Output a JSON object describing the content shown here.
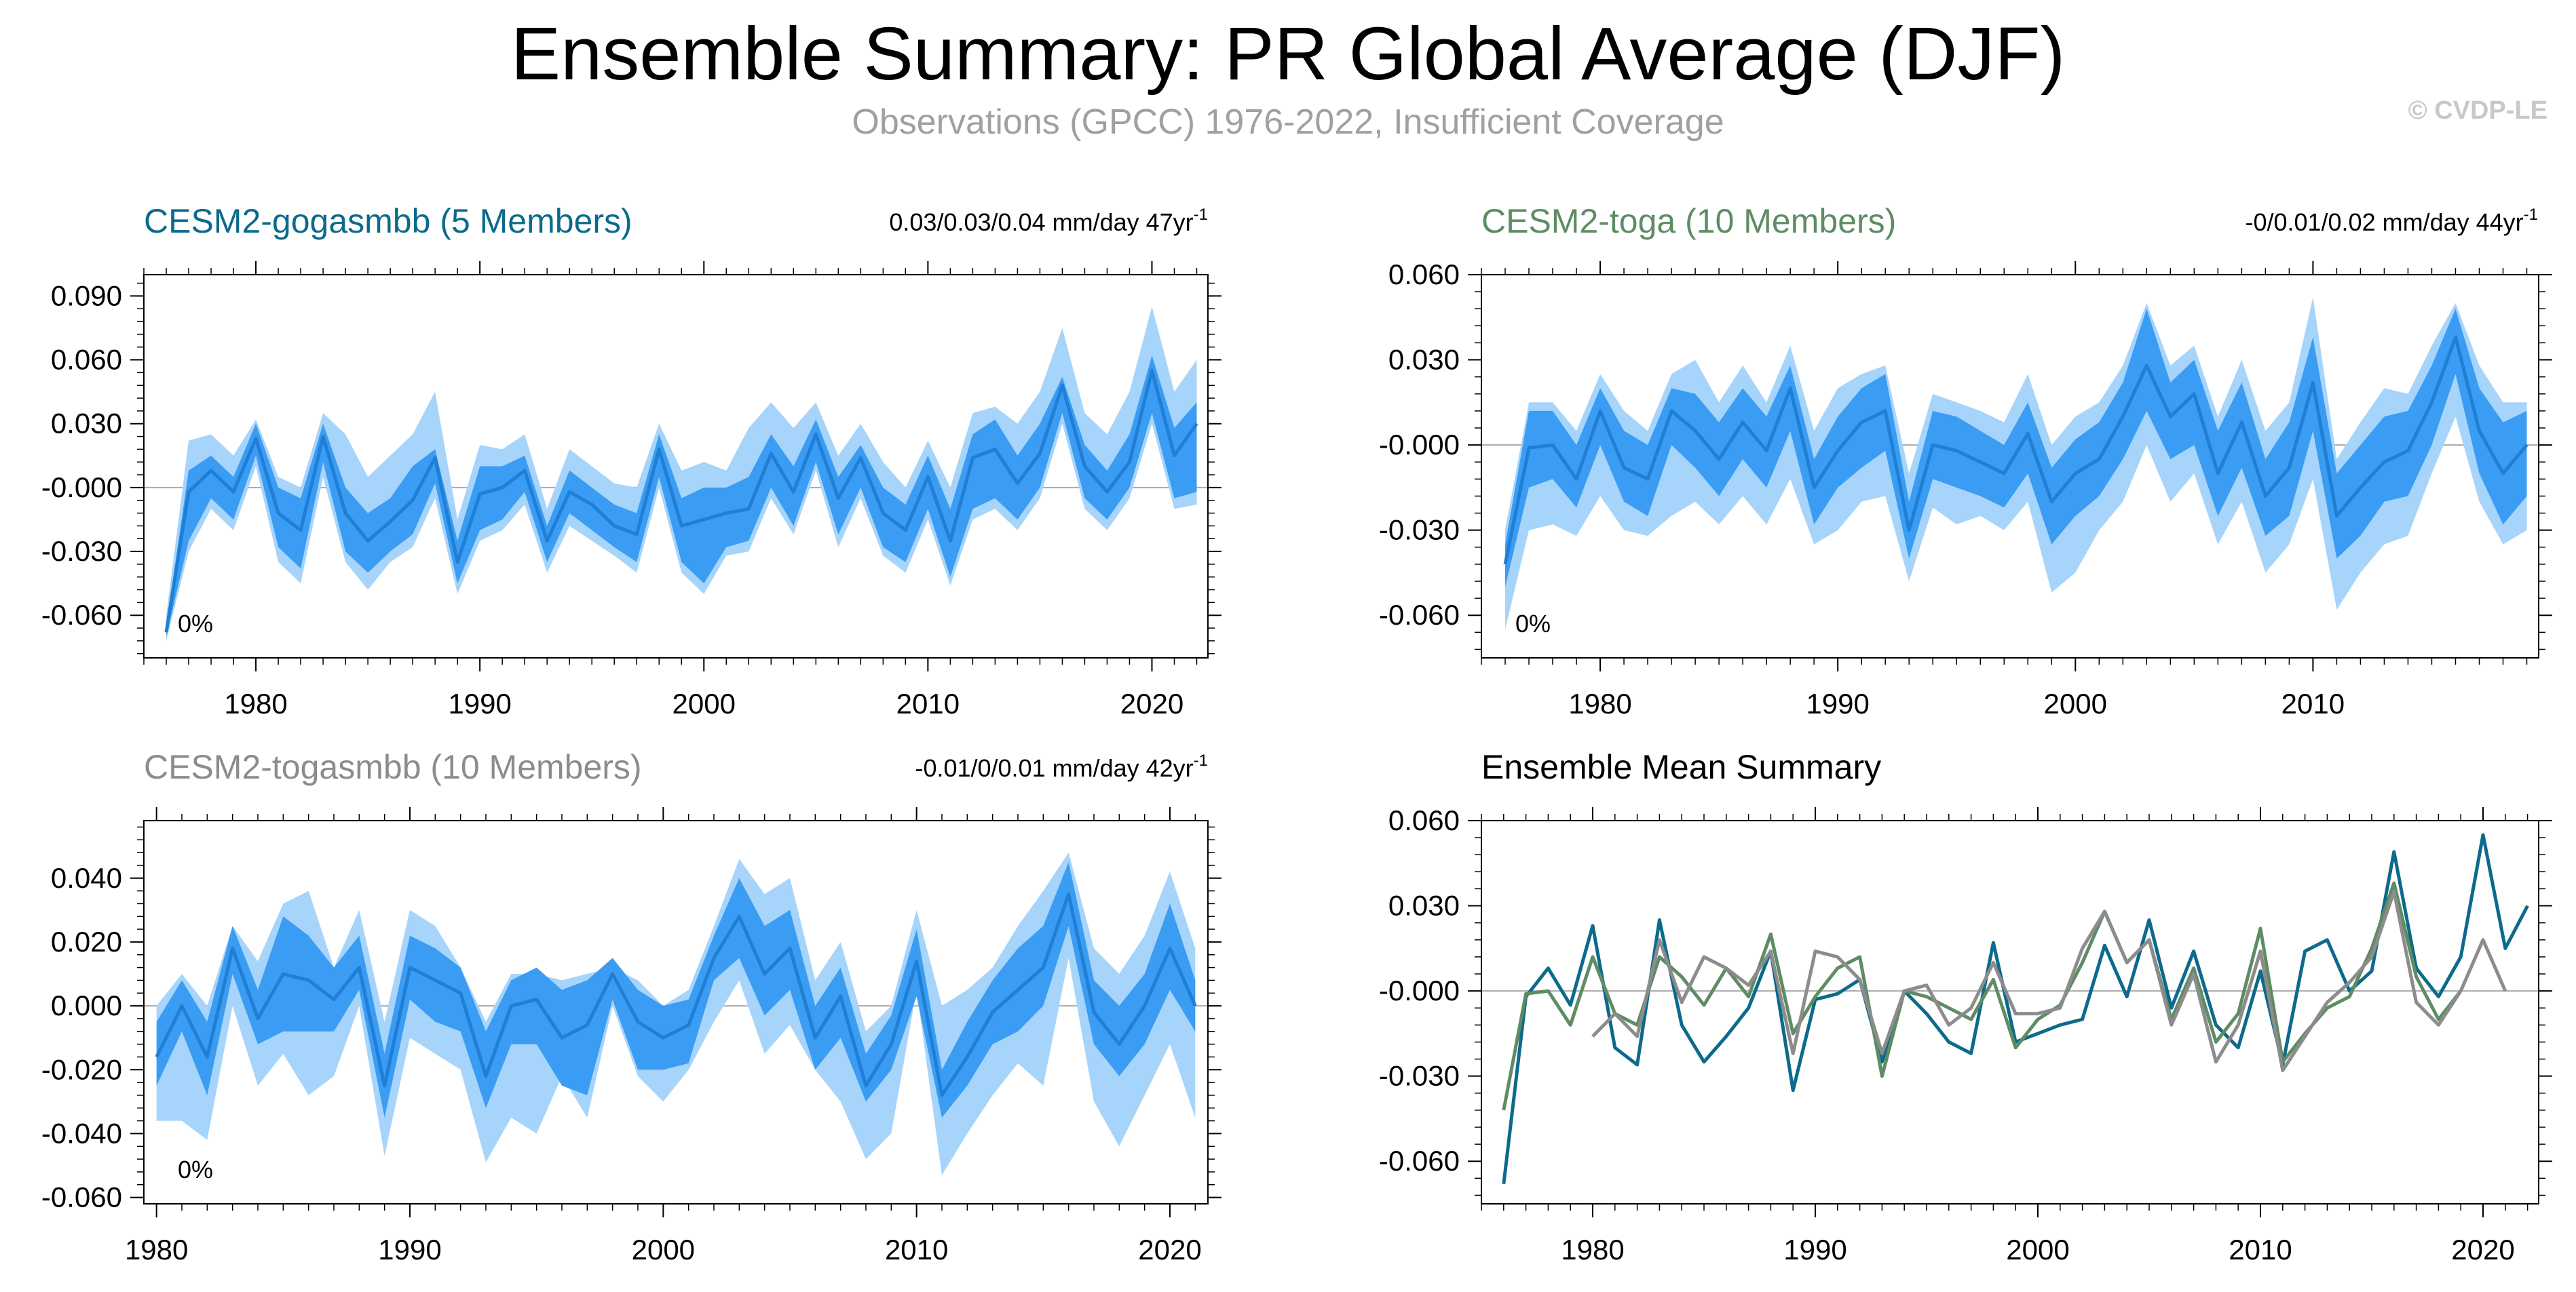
{
  "header": {
    "title": "Ensemble Summary: PR Global Average (DJF)",
    "subtitle": "Observations (GPCC) 1976-2022, Insufficient Coverage",
    "watermark": "© CVDP-LE"
  },
  "chart_data": [
    {
      "type": "area",
      "title": "CESM2-gogasmbb (5 Members)",
      "title_color": "#0c6a8c",
      "stats": "0.03/0.03/0.04 mm/day 47yr",
      "stats_sup": "-1",
      "pct_label": "0%",
      "xlim": [
        1975,
        2022.5
      ],
      "ylim": [
        -0.08,
        0.1
      ],
      "xticks": [
        1980,
        1990,
        2000,
        2010,
        2020
      ],
      "xtick_labels": [
        "1980",
        "1990",
        "2000",
        "2010",
        "2020"
      ],
      "yticks": [
        -0.06,
        -0.03,
        0.0,
        0.03,
        0.06,
        0.09
      ],
      "ytick_labels": [
        "-0.060",
        "-0.030",
        "-0.000",
        "0.030",
        "0.060",
        "0.090"
      ],
      "x_start": 1976,
      "mean": [
        -0.068,
        -0.002,
        0.008,
        -0.002,
        0.023,
        -0.012,
        -0.02,
        0.024,
        -0.012,
        -0.025,
        -0.016,
        -0.006,
        0.014,
        -0.035,
        -0.003,
        0.0,
        0.008,
        -0.025,
        -0.002,
        -0.008,
        -0.018,
        -0.022,
        0.018,
        -0.018,
        -0.015,
        -0.012,
        -0.01,
        0.016,
        -0.002,
        0.025,
        -0.005,
        0.014,
        -0.012,
        -0.02,
        0.005,
        -0.025,
        0.014,
        0.018,
        0.002,
        0.016,
        0.048,
        0.01,
        -0.002,
        0.012,
        0.055,
        0.015,
        0.03
      ],
      "inner_low": [
        -0.07,
        -0.025,
        -0.005,
        -0.015,
        0.015,
        -0.028,
        -0.038,
        0.012,
        -0.03,
        -0.04,
        -0.03,
        -0.022,
        0.002,
        -0.045,
        -0.02,
        -0.015,
        -0.002,
        -0.035,
        -0.012,
        -0.02,
        -0.028,
        -0.035,
        0.005,
        -0.035,
        -0.045,
        -0.028,
        -0.025,
        0.0,
        -0.018,
        0.012,
        -0.022,
        0.0,
        -0.028,
        -0.035,
        -0.01,
        -0.042,
        -0.01,
        -0.005,
        -0.015,
        0.0,
        0.035,
        -0.005,
        -0.015,
        0.0,
        0.035,
        -0.005,
        -0.002
      ],
      "inner_high": [
        -0.065,
        0.008,
        0.015,
        0.005,
        0.03,
        0.0,
        -0.005,
        0.03,
        0.0,
        -0.012,
        -0.005,
        0.01,
        0.018,
        -0.025,
        0.01,
        0.01,
        0.015,
        -0.018,
        0.008,
        0.0,
        -0.008,
        -0.012,
        0.025,
        -0.005,
        0.0,
        0.0,
        0.005,
        0.025,
        0.01,
        0.032,
        0.005,
        0.02,
        0.0,
        -0.008,
        0.015,
        -0.01,
        0.025,
        0.032,
        0.015,
        0.03,
        0.052,
        0.02,
        0.008,
        0.025,
        0.062,
        0.028,
        0.04
      ],
      "outer_low": [
        -0.072,
        -0.03,
        -0.01,
        -0.02,
        0.01,
        -0.035,
        -0.045,
        0.005,
        -0.035,
        -0.048,
        -0.035,
        -0.028,
        -0.005,
        -0.05,
        -0.025,
        -0.02,
        -0.008,
        -0.04,
        -0.018,
        -0.025,
        -0.032,
        -0.04,
        0.0,
        -0.04,
        -0.05,
        -0.032,
        -0.03,
        -0.005,
        -0.022,
        0.008,
        -0.028,
        -0.005,
        -0.032,
        -0.04,
        -0.015,
        -0.046,
        -0.015,
        -0.01,
        -0.02,
        -0.005,
        0.03,
        -0.01,
        -0.02,
        -0.005,
        0.03,
        -0.01,
        -0.008
      ],
      "outer_high": [
        -0.06,
        0.022,
        0.025,
        0.015,
        0.032,
        0.005,
        0.0,
        0.035,
        0.025,
        0.005,
        0.015,
        0.025,
        0.045,
        -0.015,
        0.02,
        0.018,
        0.025,
        -0.01,
        0.018,
        0.01,
        0.002,
        0.0,
        0.03,
        0.008,
        0.012,
        0.008,
        0.028,
        0.04,
        0.028,
        0.04,
        0.015,
        0.03,
        0.012,
        0.0,
        0.022,
        0.0,
        0.035,
        0.038,
        0.03,
        0.045,
        0.075,
        0.035,
        0.025,
        0.045,
        0.085,
        0.045,
        0.06
      ]
    },
    {
      "type": "area",
      "title": "CESM2-toga (10 Members)",
      "title_color": "#5e8c64",
      "stats": "-0/0.01/0.02 mm/day 44yr",
      "stats_sup": "-1",
      "pct_label": "0%",
      "xlim": [
        1975,
        2019.5
      ],
      "ylim": [
        -0.075,
        0.06
      ],
      "xticks": [
        1980,
        1990,
        2000,
        2010
      ],
      "xtick_labels": [
        "1980",
        "1990",
        "2000",
        "2010"
      ],
      "yticks": [
        -0.06,
        -0.03,
        0.0,
        0.03,
        0.06
      ],
      "ytick_labels": [
        "-0.060",
        "-0.030",
        "-0.000",
        "0.030",
        "0.060"
      ],
      "x_start": 1976,
      "mean": [
        -0.042,
        -0.001,
        0.0,
        -0.012,
        0.012,
        -0.008,
        -0.012,
        0.012,
        0.005,
        -0.005,
        0.008,
        -0.002,
        0.02,
        -0.015,
        -0.002,
        0.008,
        0.012,
        -0.03,
        0.0,
        -0.002,
        -0.006,
        -0.01,
        0.004,
        -0.02,
        -0.01,
        -0.005,
        0.01,
        0.028,
        0.01,
        0.018,
        -0.01,
        0.008,
        -0.018,
        -0.008,
        0.022,
        -0.025,
        -0.015,
        -0.006,
        -0.002,
        0.015,
        0.038,
        0.005,
        -0.01,
        0.0
      ],
      "inner_low": [
        -0.05,
        -0.015,
        -0.012,
        -0.022,
        0.0,
        -0.02,
        -0.025,
        0.0,
        -0.008,
        -0.018,
        -0.005,
        -0.015,
        0.005,
        -0.028,
        -0.015,
        -0.008,
        -0.002,
        -0.04,
        -0.012,
        -0.015,
        -0.018,
        -0.022,
        -0.01,
        -0.035,
        -0.025,
        -0.018,
        -0.005,
        0.012,
        -0.005,
        0.0,
        -0.025,
        -0.008,
        -0.032,
        -0.025,
        0.005,
        -0.04,
        -0.032,
        -0.02,
        -0.018,
        0.0,
        0.025,
        -0.01,
        -0.028,
        -0.018
      ],
      "inner_high": [
        -0.035,
        0.012,
        0.012,
        0.0,
        0.02,
        0.005,
        0.0,
        0.02,
        0.018,
        0.008,
        0.02,
        0.01,
        0.028,
        -0.005,
        0.01,
        0.02,
        0.025,
        -0.02,
        0.012,
        0.01,
        0.005,
        0.0,
        0.015,
        -0.008,
        0.002,
        0.008,
        0.022,
        0.048,
        0.022,
        0.03,
        0.005,
        0.022,
        -0.005,
        0.008,
        0.038,
        -0.01,
        0.0,
        0.01,
        0.012,
        0.028,
        0.048,
        0.02,
        0.008,
        0.012
      ],
      "outer_low": [
        -0.065,
        -0.03,
        -0.028,
        -0.032,
        -0.018,
        -0.03,
        -0.032,
        -0.025,
        -0.02,
        -0.028,
        -0.018,
        -0.028,
        -0.012,
        -0.035,
        -0.03,
        -0.02,
        -0.018,
        -0.048,
        -0.022,
        -0.028,
        -0.025,
        -0.03,
        -0.02,
        -0.052,
        -0.045,
        -0.03,
        -0.02,
        0.0,
        -0.02,
        -0.01,
        -0.035,
        -0.02,
        -0.045,
        -0.035,
        -0.012,
        -0.058,
        -0.045,
        -0.035,
        -0.032,
        -0.01,
        0.01,
        -0.02,
        -0.035,
        -0.03
      ],
      "outer_high": [
        -0.03,
        0.015,
        0.015,
        0.005,
        0.025,
        0.012,
        0.005,
        0.025,
        0.03,
        0.015,
        0.028,
        0.015,
        0.035,
        0.005,
        0.02,
        0.025,
        0.028,
        -0.01,
        0.018,
        0.015,
        0.012,
        0.008,
        0.025,
        0.0,
        0.01,
        0.015,
        0.028,
        0.05,
        0.028,
        0.035,
        0.01,
        0.03,
        0.005,
        0.015,
        0.052,
        -0.005,
        0.008,
        0.02,
        0.018,
        0.035,
        0.05,
        0.028,
        0.015,
        0.015
      ]
    },
    {
      "type": "area",
      "title": "CESM2-togasmbb (10 Members)",
      "title_color": "#8c8c8c",
      "stats": "-0.01/0/0.01 mm/day 42yr",
      "stats_sup": "-1",
      "pct_label": "0%",
      "xlim": [
        1979.5,
        2021.5
      ],
      "ylim": [
        -0.062,
        0.058
      ],
      "xticks": [
        1980,
        1990,
        2000,
        2010,
        2020
      ],
      "xtick_labels": [
        "1980",
        "1990",
        "2000",
        "2010",
        "2020"
      ],
      "yticks": [
        -0.06,
        -0.04,
        -0.02,
        0.0,
        0.02,
        0.04
      ],
      "ytick_labels": [
        "-0.060",
        "-0.040",
        "-0.020",
        "0.000",
        "0.020",
        "0.040"
      ],
      "x_start": 1980,
      "mean": [
        -0.016,
        0.0,
        -0.016,
        0.018,
        -0.004,
        0.01,
        0.008,
        0.002,
        0.012,
        -0.025,
        0.012,
        0.008,
        0.004,
        -0.022,
        0.0,
        0.002,
        -0.01,
        -0.006,
        0.01,
        -0.005,
        -0.01,
        -0.006,
        0.015,
        0.028,
        0.01,
        0.018,
        -0.01,
        0.003,
        -0.025,
        -0.012,
        0.014,
        -0.028,
        -0.016,
        -0.002,
        0.005,
        0.012,
        0.035,
        -0.002,
        -0.012,
        0.0,
        0.018,
        0.0
      ],
      "inner_low": [
        -0.025,
        -0.008,
        -0.028,
        0.01,
        -0.012,
        -0.008,
        -0.008,
        -0.008,
        0.005,
        -0.035,
        0.002,
        -0.005,
        -0.008,
        -0.032,
        -0.012,
        -0.012,
        -0.025,
        -0.028,
        0.002,
        -0.02,
        -0.02,
        -0.018,
        0.008,
        0.015,
        -0.003,
        0.005,
        -0.02,
        -0.01,
        -0.03,
        -0.02,
        0.003,
        -0.035,
        -0.025,
        -0.012,
        -0.008,
        0.0,
        0.025,
        -0.012,
        -0.022,
        -0.012,
        0.005,
        -0.008
      ],
      "inner_high": [
        -0.005,
        0.008,
        -0.005,
        0.025,
        0.005,
        0.028,
        0.022,
        0.012,
        0.022,
        -0.015,
        0.022,
        0.018,
        0.012,
        -0.008,
        0.008,
        0.012,
        0.005,
        0.008,
        0.015,
        0.005,
        0.0,
        0.002,
        0.022,
        0.04,
        0.025,
        0.03,
        0.0,
        0.012,
        -0.015,
        -0.003,
        0.024,
        -0.02,
        -0.005,
        0.008,
        0.018,
        0.025,
        0.045,
        0.008,
        0.0,
        0.01,
        0.032,
        0.008
      ],
      "outer_low": [
        -0.036,
        -0.036,
        -0.042,
        0.0,
        -0.025,
        -0.015,
        -0.028,
        -0.022,
        0.0,
        -0.047,
        -0.01,
        -0.015,
        -0.02,
        -0.049,
        -0.035,
        -0.04,
        -0.022,
        -0.035,
        0.0,
        -0.022,
        -0.03,
        -0.02,
        -0.005,
        0.008,
        -0.015,
        -0.006,
        -0.02,
        -0.03,
        -0.048,
        -0.04,
        0.005,
        -0.053,
        -0.04,
        -0.028,
        -0.018,
        -0.025,
        0.015,
        -0.03,
        -0.044,
        -0.028,
        -0.012,
        -0.035
      ],
      "outer_high": [
        0.0,
        0.01,
        0.0,
        0.025,
        0.014,
        0.032,
        0.036,
        0.012,
        0.03,
        -0.005,
        0.03,
        0.025,
        0.012,
        -0.005,
        0.01,
        0.01,
        0.008,
        0.01,
        0.012,
        0.008,
        0.0,
        0.005,
        0.025,
        0.046,
        0.035,
        0.04,
        0.008,
        0.02,
        -0.008,
        0.0,
        0.03,
        0.0,
        0.005,
        0.012,
        0.025,
        0.036,
        0.048,
        0.018,
        0.01,
        0.022,
        0.042,
        0.018
      ]
    },
    {
      "type": "line",
      "title": "Ensemble Mean Summary",
      "title_color": "#000000",
      "xlim": [
        1975,
        2022.5
      ],
      "ylim": [
        -0.075,
        0.06
      ],
      "xticks": [
        1980,
        1990,
        2000,
        2010,
        2020
      ],
      "xtick_labels": [
        "1980",
        "1990",
        "2000",
        "2010",
        "2020"
      ],
      "yticks": [
        -0.06,
        -0.03,
        0.0,
        0.03,
        0.06
      ],
      "ytick_labels": [
        "-0.060",
        "-0.030",
        "-0.000",
        "0.030",
        "0.060"
      ],
      "series": [
        {
          "name": "CESM2-gogasmbb",
          "color": "#0c6a8c",
          "x_start": 1976,
          "values": [
            -0.068,
            -0.002,
            0.008,
            -0.005,
            0.023,
            -0.02,
            -0.026,
            0.025,
            -0.012,
            -0.025,
            -0.016,
            -0.006,
            0.014,
            -0.035,
            -0.003,
            -0.001,
            0.004,
            -0.025,
            0.0,
            -0.008,
            -0.018,
            -0.022,
            0.017,
            -0.018,
            -0.015,
            -0.012,
            -0.01,
            0.016,
            -0.002,
            0.025,
            -0.006,
            0.014,
            -0.012,
            -0.02,
            0.007,
            -0.026,
            0.014,
            0.018,
            0.0,
            0.007,
            0.049,
            0.008,
            -0.002,
            0.012,
            0.055,
            0.015,
            0.03
          ]
        },
        {
          "name": "CESM2-toga",
          "color": "#5e8c64",
          "x_start": 1976,
          "values": [
            -0.042,
            -0.001,
            0.0,
            -0.012,
            0.012,
            -0.008,
            -0.012,
            0.012,
            0.005,
            -0.005,
            0.008,
            -0.002,
            0.02,
            -0.015,
            -0.002,
            0.008,
            0.012,
            -0.03,
            0.0,
            -0.002,
            -0.006,
            -0.01,
            0.004,
            -0.02,
            -0.01,
            -0.005,
            0.01,
            0.028,
            0.01,
            0.018,
            -0.01,
            0.008,
            -0.018,
            -0.008,
            0.022,
            -0.025,
            -0.015,
            -0.006,
            -0.002,
            0.015,
            0.038,
            0.005,
            -0.01,
            0.0
          ]
        },
        {
          "name": "CESM2-togasmbb",
          "color": "#8c8c8c",
          "x_start": 1980,
          "values": [
            -0.016,
            -0.008,
            -0.016,
            0.018,
            -0.004,
            0.012,
            0.008,
            0.002,
            0.014,
            -0.022,
            0.014,
            0.012,
            0.004,
            -0.022,
            0.0,
            0.002,
            -0.012,
            -0.006,
            0.01,
            -0.008,
            -0.008,
            -0.006,
            0.015,
            0.028,
            0.01,
            0.018,
            -0.012,
            0.006,
            -0.025,
            -0.012,
            0.014,
            -0.028,
            -0.016,
            -0.004,
            0.003,
            0.012,
            0.035,
            -0.004,
            -0.012,
            0.0,
            0.018,
            0.0
          ]
        }
      ]
    }
  ]
}
